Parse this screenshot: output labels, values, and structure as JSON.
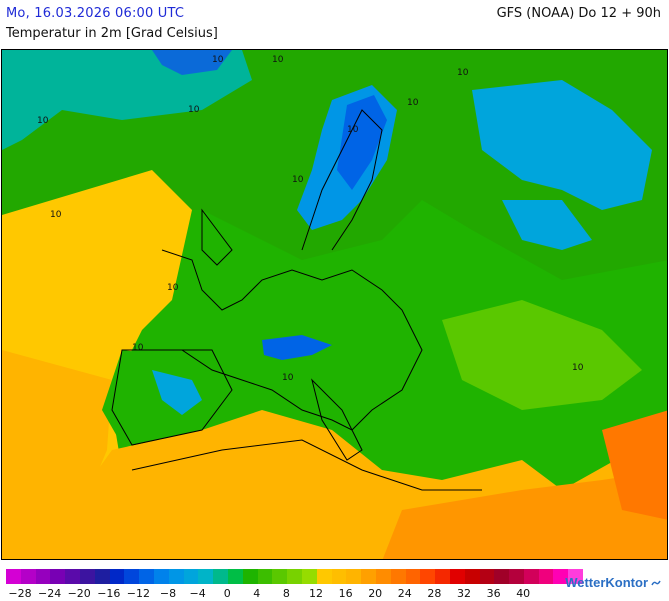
{
  "header": {
    "date": "Mo, 16.03.2026 06:00 UTC",
    "model": "GFS (NOAA) Do 12 + 90h",
    "parameter": "Temperatur in 2m [Grad Celsius]"
  },
  "map": {
    "contour_labels": [
      "10",
      "10",
      "10",
      "10",
      "10",
      "10",
      "10",
      "10",
      "10",
      "10",
      "10",
      "10",
      "10"
    ]
  },
  "legend": {
    "labels": [
      "−28",
      "−24",
      "−20",
      "−16",
      "−12",
      "−8",
      "−4",
      "0",
      "4",
      "8",
      "12",
      "16",
      "20",
      "24",
      "28",
      "32",
      "36",
      "40"
    ],
    "colors": [
      "#d400d4",
      "#b400c8",
      "#9600be",
      "#7800b4",
      "#5a0aaa",
      "#3c14a0",
      "#1e1ea0",
      "#0028c8",
      "#0046dc",
      "#0064e6",
      "#0082eb",
      "#0096e6",
      "#00a5dc",
      "#00b4c8",
      "#00b98c",
      "#00be46",
      "#1eb400",
      "#3cbe00",
      "#5ac800",
      "#78d200",
      "#96dc00",
      "#ffc800",
      "#ffbe00",
      "#ffb400",
      "#ffa000",
      "#ff8c00",
      "#ff7800",
      "#ff6400",
      "#ff4600",
      "#f52800",
      "#e10000",
      "#c80000",
      "#b40014",
      "#a00028",
      "#b4003c",
      "#d2005a",
      "#f0007d",
      "#ff00b4",
      "#ff3cdc"
    ]
  },
  "brand": {
    "name": "WetterKontor"
  },
  "colors": {
    "date_text": "#1f2ad6",
    "brand": "#2b6fc4"
  }
}
